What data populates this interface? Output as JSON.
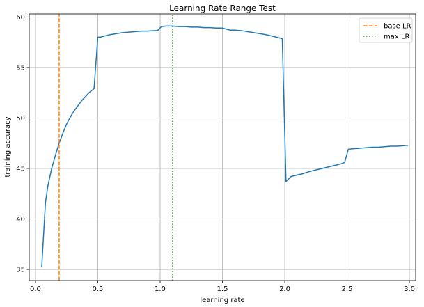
{
  "chart_data": {
    "type": "line",
    "title": "Learning Rate Range Test",
    "xlabel": "learning rate",
    "ylabel": "training accuracy",
    "xlim": [
      -0.05,
      3.05
    ],
    "ylim": [
      33.9,
      60.3
    ],
    "xticks": [
      "0.0",
      "0.5",
      "1.0",
      "1.5",
      "2.0",
      "2.5",
      "3.0"
    ],
    "xtick_values": [
      0.0,
      0.5,
      1.0,
      1.5,
      2.0,
      2.5,
      3.0
    ],
    "yticks": [
      "35",
      "40",
      "45",
      "50",
      "55",
      "60"
    ],
    "ytick_values": [
      35,
      40,
      45,
      50,
      55,
      60
    ],
    "grid": true,
    "legend_position": "top-right",
    "series": [
      {
        "name": "",
        "color": "#1f77b4",
        "style": "solid",
        "x": [
          0.05,
          0.08,
          0.1,
          0.13,
          0.16,
          0.19,
          0.22,
          0.25,
          0.28,
          0.31,
          0.34,
          0.37,
          0.4,
          0.43,
          0.47,
          0.5,
          0.52,
          0.55,
          0.6,
          0.65,
          0.7,
          0.75,
          0.8,
          0.85,
          0.9,
          0.95,
          0.98,
          1.01,
          1.05,
          1.1,
          1.15,
          1.2,
          1.25,
          1.3,
          1.35,
          1.4,
          1.45,
          1.5,
          1.53,
          1.56,
          1.6,
          1.65,
          1.7,
          1.75,
          1.8,
          1.85,
          1.9,
          1.95,
          1.98,
          2.01,
          2.05,
          2.1,
          2.15,
          2.2,
          2.25,
          2.3,
          2.35,
          2.4,
          2.45,
          2.48,
          2.51,
          2.55,
          2.6,
          2.65,
          2.7,
          2.75,
          2.8,
          2.85,
          2.9,
          2.95,
          2.99
        ],
        "y": [
          35.2,
          41.6,
          43.3,
          45.0,
          46.3,
          47.5,
          48.5,
          49.4,
          50.1,
          50.7,
          51.2,
          51.7,
          52.1,
          52.5,
          52.9,
          58.0,
          58.0,
          58.1,
          58.25,
          58.35,
          58.45,
          58.5,
          58.55,
          58.6,
          58.6,
          58.65,
          58.65,
          59.05,
          59.1,
          59.1,
          59.05,
          59.05,
          59.0,
          59.0,
          58.95,
          58.95,
          58.9,
          58.9,
          58.8,
          58.7,
          58.7,
          58.65,
          58.55,
          58.45,
          58.35,
          58.25,
          58.1,
          57.95,
          57.85,
          43.7,
          44.2,
          44.35,
          44.5,
          44.7,
          44.85,
          45.0,
          45.15,
          45.3,
          45.45,
          45.6,
          46.9,
          46.95,
          47.0,
          47.05,
          47.1,
          47.1,
          47.15,
          47.2,
          47.2,
          47.25,
          47.3
        ]
      },
      {
        "name": "base LR",
        "color": "#ff7f0e",
        "style": "dashed",
        "x": [
          0.19,
          0.19
        ],
        "y": [
          33.9,
          60.3
        ]
      },
      {
        "name": "max LR",
        "color": "#2ca02c",
        "style": "dotted",
        "x": [
          1.1,
          1.1
        ],
        "y": [
          33.9,
          60.3
        ]
      }
    ]
  }
}
